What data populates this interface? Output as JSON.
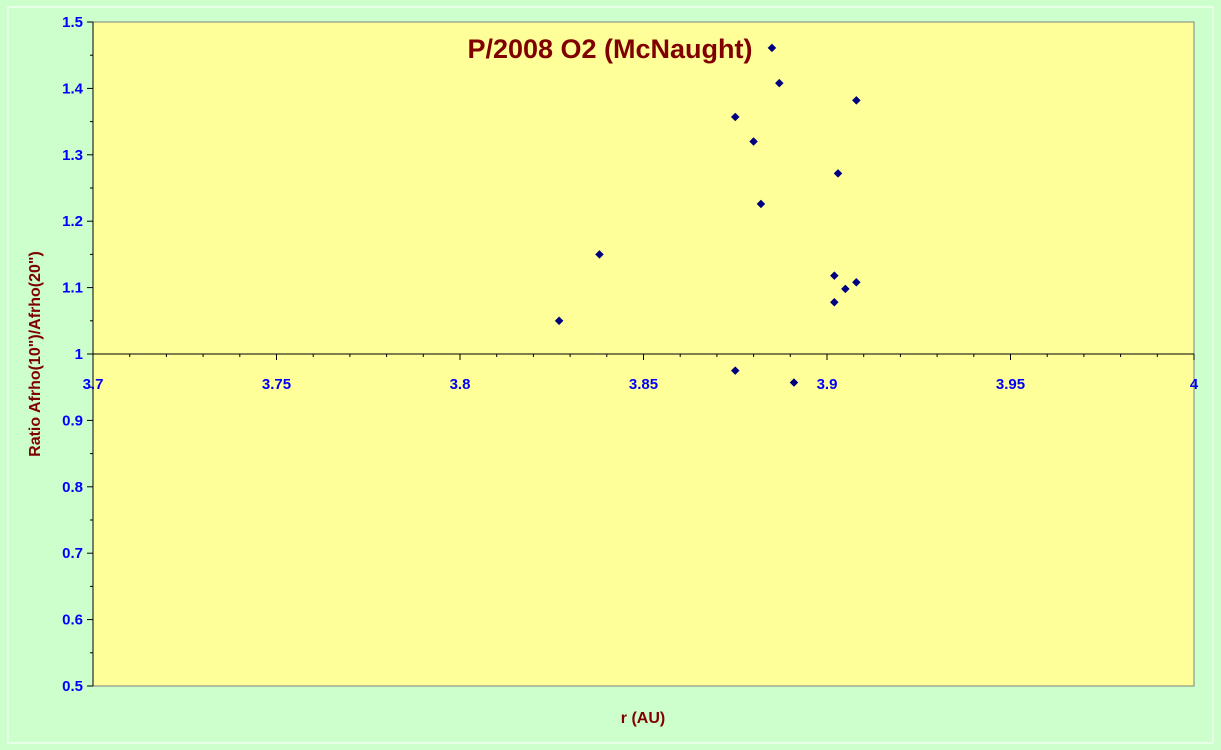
{
  "chart_data": {
    "type": "scatter",
    "title": "P/2008 O2 (McNaught)",
    "xlabel": "r (AU)",
    "ylabel": "Ratio Afrho(10\")/Afrho(20\")",
    "xlim": [
      3.7,
      4.0
    ],
    "ylim": [
      0.5,
      1.5
    ],
    "x_ticks": [
      "3.7",
      "3.75",
      "3.8",
      "3.85",
      "3.9",
      "3.95",
      "4"
    ],
    "y_ticks": [
      "0.5",
      "0.6",
      "0.7",
      "0.8",
      "0.9",
      "1",
      "1.1",
      "1.2",
      "1.3",
      "1.4",
      "1.5"
    ],
    "x_axis_crosses_y": 1.0,
    "grid": false,
    "legend": "none",
    "series": [
      {
        "marker": "diamond",
        "points": [
          {
            "x": 3.827,
            "y": 1.05
          },
          {
            "x": 3.838,
            "y": 1.15
          },
          {
            "x": 3.875,
            "y": 1.357
          },
          {
            "x": 3.875,
            "y": 0.975
          },
          {
            "x": 3.88,
            "y": 1.32
          },
          {
            "x": 3.882,
            "y": 1.226
          },
          {
            "x": 3.885,
            "y": 1.461
          },
          {
            "x": 3.887,
            "y": 1.408
          },
          {
            "x": 3.891,
            "y": 0.957
          },
          {
            "x": 3.902,
            "y": 1.118
          },
          {
            "x": 3.902,
            "y": 1.078
          },
          {
            "x": 3.903,
            "y": 1.272
          },
          {
            "x": 3.905,
            "y": 1.098
          },
          {
            "x": 3.908,
            "y": 1.108
          },
          {
            "x": 3.908,
            "y": 1.382
          }
        ]
      }
    ]
  },
  "colors": {
    "background": "#ccffcc",
    "plot_area": "#ffff99",
    "marker": "#000080",
    "tick_text": "#0000ff",
    "title_text": "#800000"
  }
}
